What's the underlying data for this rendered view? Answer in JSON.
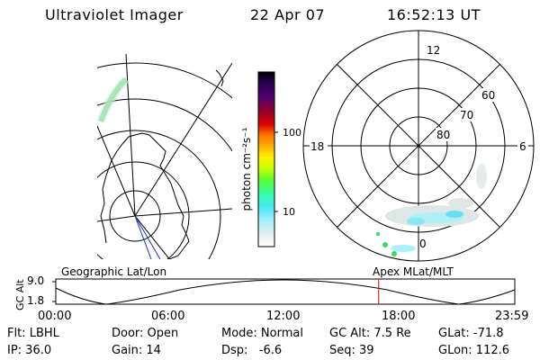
{
  "header": {
    "instrument": "Ultraviolet Imager",
    "date": "22 Apr 07",
    "time": "16:52:13 UT"
  },
  "colorbar": {
    "unit_label": "photon cm⁻²s⁻¹",
    "tick_labels": [
      "100",
      "10"
    ],
    "colors": [
      "#000000",
      "#1a0033",
      "#330066",
      "#4d0080",
      "#800000",
      "#b30000",
      "#e60000",
      "#ff4000",
      "#ff8000",
      "#ffb000",
      "#ffd000",
      "#fff200",
      "#c8ff00",
      "#66ff33",
      "#33ff66",
      "#33ffcc",
      "#66e6ff",
      "#99f0ff",
      "#cceeff",
      "#e6f0f0",
      "#ffffff"
    ]
  },
  "polar_plot": {
    "mlt_labels": [
      "12",
      "18",
      "6",
      "0"
    ],
    "mlat_labels": [
      "60",
      "70",
      "80"
    ]
  },
  "altitude_plot": {
    "left_title": "Geographic Lat/Lon",
    "right_title": "Apex  MLat/MLT",
    "y_axis_label": "GC Alt",
    "y_ticks": [
      "9.0",
      "1.8"
    ],
    "x_ticks": [
      "00:00",
      "06:00",
      "12:00",
      "18:00",
      "23:59"
    ],
    "current_time_hours": 16.87
  },
  "status": {
    "filter": "Flt: LBHL",
    "ip": "IP: 36.0",
    "door": "Door: Open",
    "gain": "Gain: 14",
    "mode": "Mode: Normal",
    "dsp": "Dsp:   -6.6",
    "gc_alt": "GC Alt: 7.5 Re",
    "seq": "Seq: 39",
    "glat": "GLat: -71.8",
    "glon": "GLon: 112.6"
  },
  "colors": {
    "marker": "#e00000",
    "aurora_cyan": "#66e0f0",
    "aurora_green": "#33dd55",
    "aurora_grey": "#d8e0e0"
  }
}
